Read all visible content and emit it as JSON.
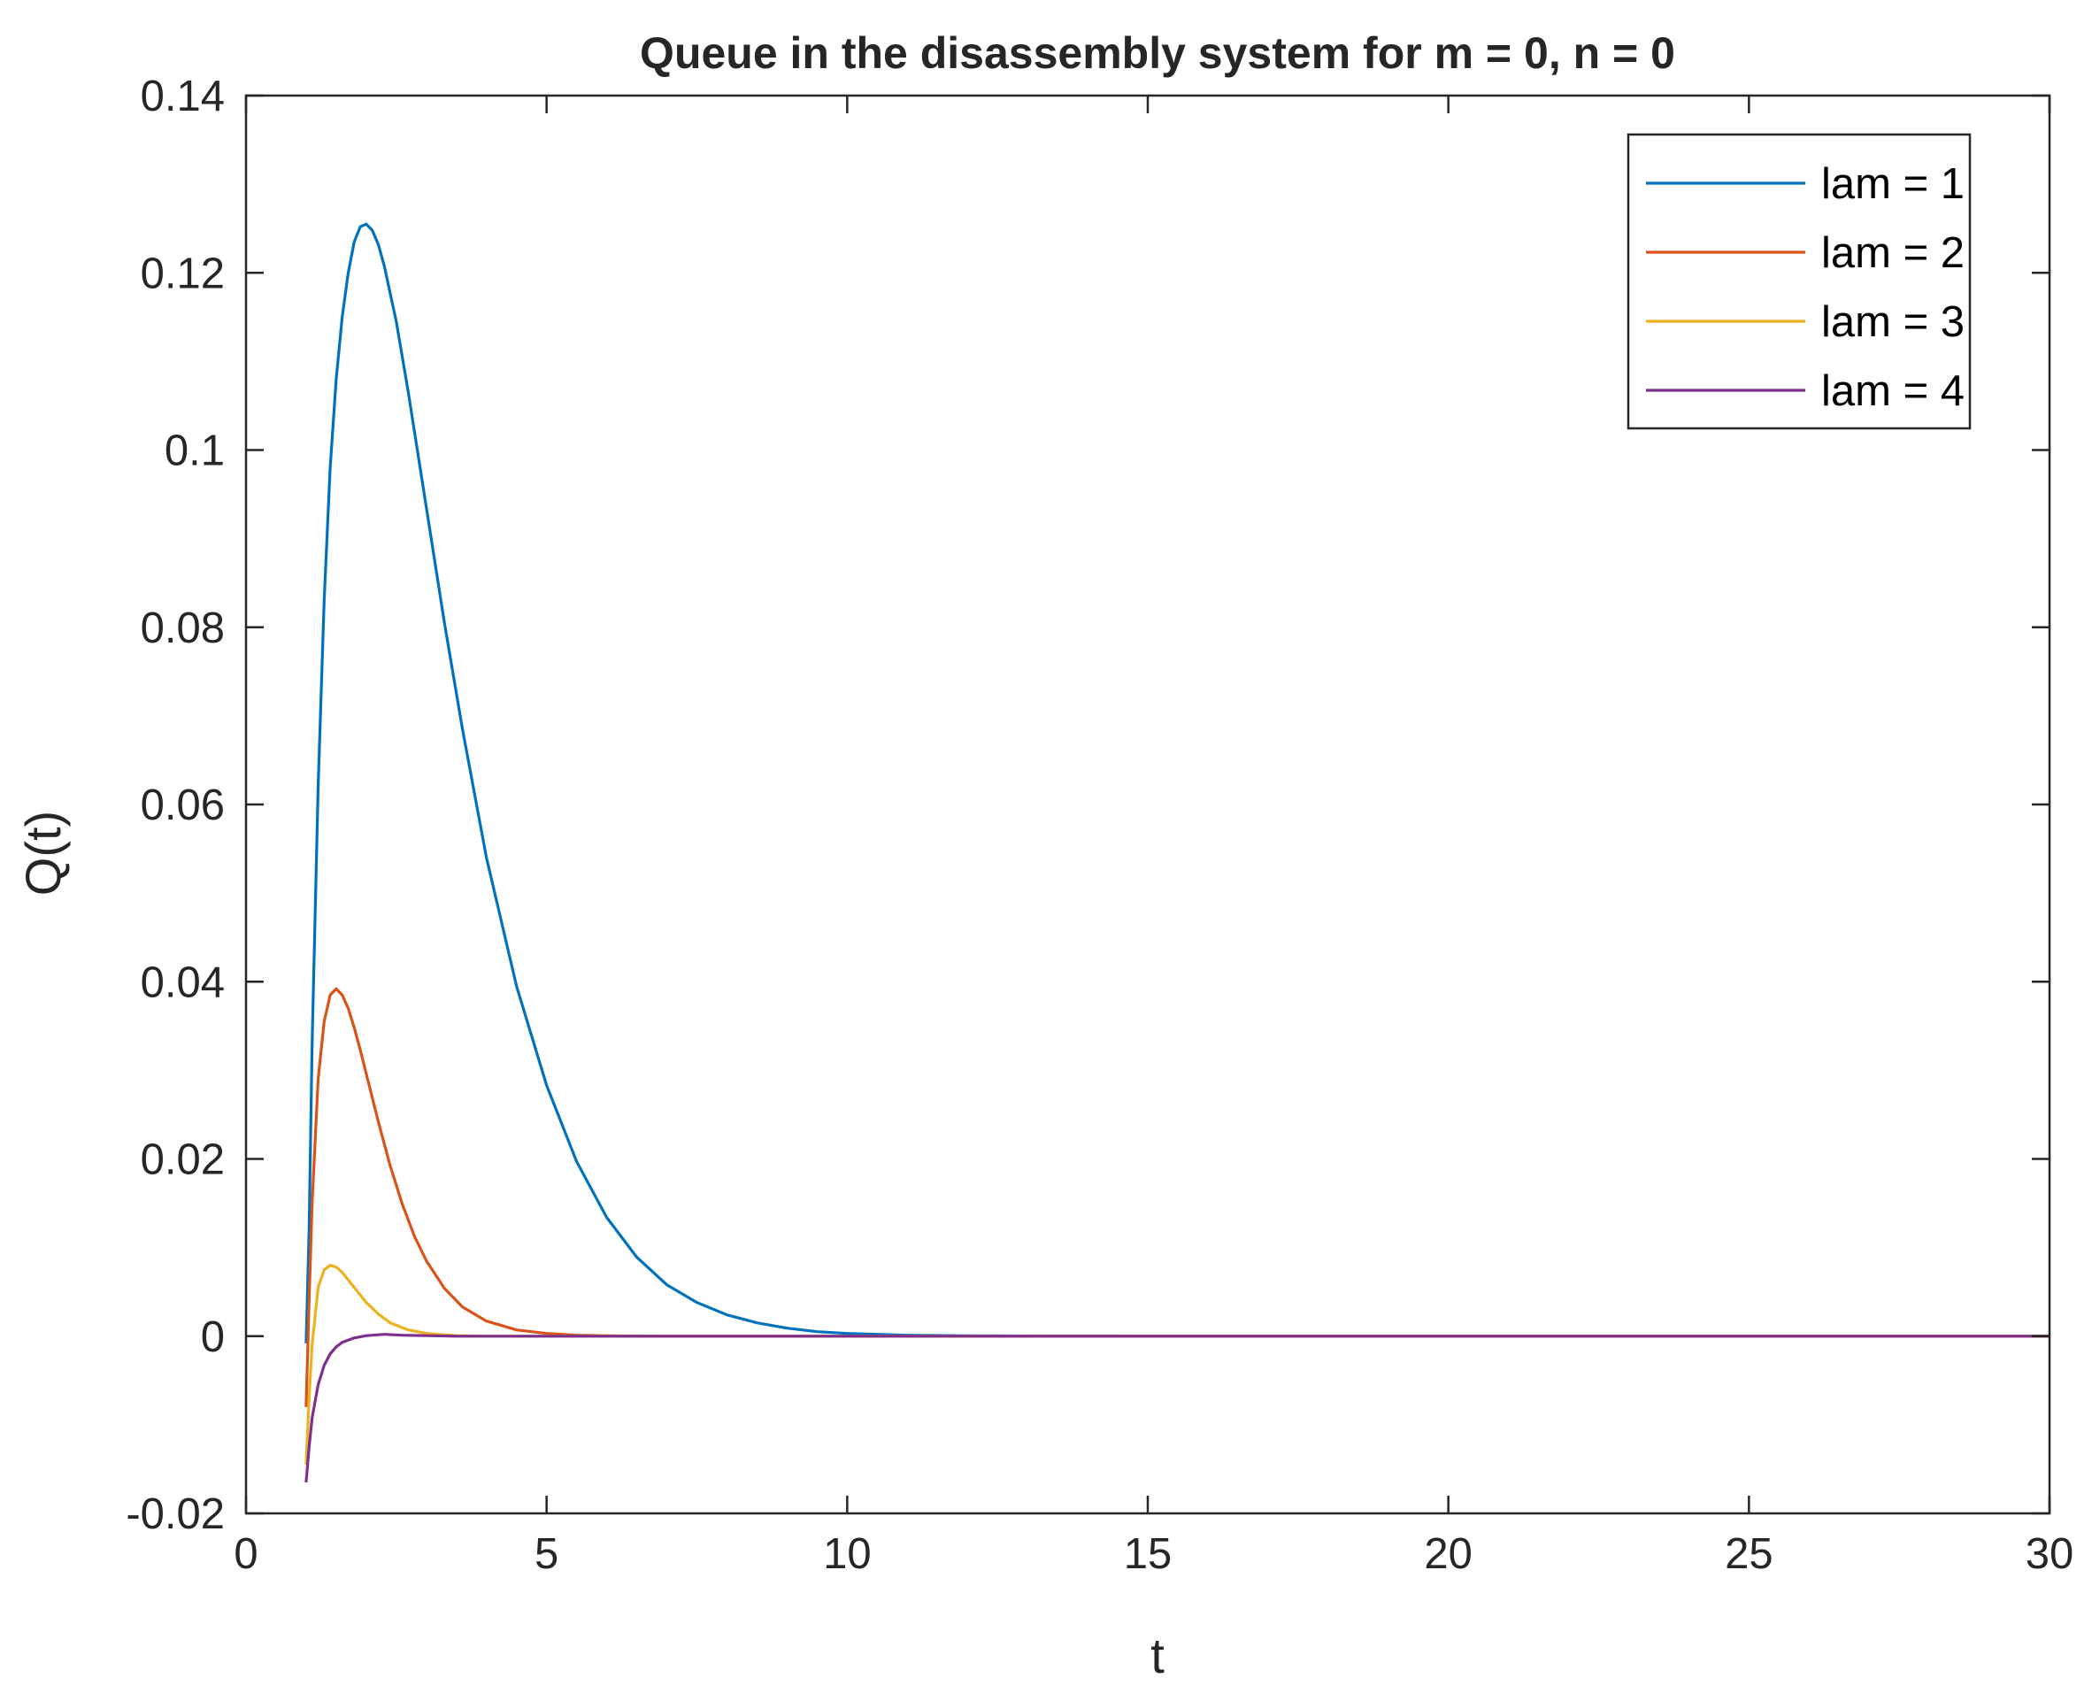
{
  "chart_data": {
    "type": "line",
    "title": "Queue in the disassembly system for m = 0, n = 0",
    "xlabel": "t",
    "ylabel": "Q(t)",
    "xlim": [
      0,
      30
    ],
    "ylim": [
      -0.02,
      0.14
    ],
    "xticks": [
      0,
      5,
      10,
      15,
      20,
      25,
      30
    ],
    "xtick_labels": [
      "0",
      "5",
      "10",
      "15",
      "20",
      "25",
      "30"
    ],
    "yticks": [
      -0.02,
      0,
      0.02,
      0.04,
      0.06,
      0.08,
      0.1,
      0.12,
      0.14
    ],
    "ytick_labels": [
      "-0.02",
      "0",
      "0.02",
      "0.04",
      "0.06",
      "0.08",
      "0.1",
      "0.12",
      "0.14"
    ],
    "grid": false,
    "legend_position": "top-right",
    "colors": {
      "axes": "#262626",
      "background": "#ffffff"
    },
    "series": [
      {
        "name": "lam = 1",
        "color": "#0072BD",
        "x": [
          1,
          1.05,
          1.1,
          1.2,
          1.3,
          1.4,
          1.5,
          1.6,
          1.7,
          1.8,
          1.9,
          2.0,
          2.1,
          2.2,
          2.3,
          2.5,
          2.7,
          3.0,
          3.3,
          3.6,
          4.0,
          4.5,
          5.0,
          5.5,
          6.0,
          6.5,
          7.0,
          7.5,
          8.0,
          8.5,
          9.0,
          9.5,
          10,
          11,
          12,
          13,
          15,
          20,
          25,
          30
        ],
        "y": [
          -0.0008,
          0.012,
          0.033,
          0.062,
          0.083,
          0.098,
          0.108,
          0.115,
          0.12,
          0.1235,
          0.1252,
          0.1255,
          0.1248,
          0.1232,
          0.1208,
          0.1145,
          0.1065,
          0.0935,
          0.0805,
          0.0685,
          0.054,
          0.0395,
          0.0283,
          0.0197,
          0.0134,
          0.0089,
          0.0058,
          0.0038,
          0.0024,
          0.0015,
          0.0009,
          0.0005,
          0.0003,
          0.0001,
          4e-05,
          1e-05,
          0.0,
          0.0,
          0.0,
          0.0
        ]
      },
      {
        "name": "lam = 2",
        "color": "#D95319",
        "x": [
          1,
          1.05,
          1.1,
          1.2,
          1.3,
          1.4,
          1.5,
          1.6,
          1.7,
          1.8,
          1.9,
          2.0,
          2.2,
          2.4,
          2.6,
          2.8,
          3.0,
          3.3,
          3.6,
          4.0,
          4.5,
          5.0,
          5.5,
          6.0,
          7.0,
          8.0,
          10,
          15,
          20,
          25,
          30
        ],
        "y": [
          -0.008,
          0.004,
          0.015,
          0.029,
          0.0355,
          0.0385,
          0.0392,
          0.0385,
          0.037,
          0.0348,
          0.0323,
          0.0296,
          0.0242,
          0.0192,
          0.0149,
          0.0113,
          0.0085,
          0.0054,
          0.0033,
          0.0017,
          0.0007,
          0.0003,
          0.0001,
          4e-05,
          0.0,
          0.0,
          0.0,
          0.0,
          0.0,
          0.0,
          0.0
        ]
      },
      {
        "name": "lam = 3",
        "color": "#EDB120",
        "x": [
          1,
          1.05,
          1.1,
          1.2,
          1.3,
          1.4,
          1.5,
          1.6,
          1.8,
          2.0,
          2.2,
          2.4,
          2.7,
          3.0,
          3.5,
          4.0,
          5.0,
          7.0,
          10,
          15,
          20,
          25,
          30
        ],
        "y": [
          -0.0145,
          -0.007,
          -0.001,
          0.0055,
          0.0075,
          0.008,
          0.0078,
          0.0072,
          0.0055,
          0.0038,
          0.0025,
          0.0015,
          0.0007,
          0.0003,
          5e-05,
          0.0,
          0.0,
          0.0,
          0.0,
          0.0,
          0.0,
          0.0,
          0.0
        ]
      },
      {
        "name": "lam = 4",
        "color": "#7E2F8E",
        "x": [
          1,
          1.05,
          1.1,
          1.2,
          1.3,
          1.4,
          1.5,
          1.6,
          1.8,
          2.0,
          2.3,
          2.6,
          3.0,
          3.5,
          4.0,
          5.0,
          7.0,
          10,
          15,
          20,
          25,
          30
        ],
        "y": [
          -0.0165,
          -0.0125,
          -0.0092,
          -0.0055,
          -0.0033,
          -0.002,
          -0.0012,
          -0.0007,
          -0.0002,
          5e-05,
          0.0002,
          0.0001,
          5e-05,
          0.0,
          0.0,
          0.0,
          0.0,
          0.0,
          0.0,
          0.0,
          0.0,
          0.0
        ]
      }
    ]
  }
}
